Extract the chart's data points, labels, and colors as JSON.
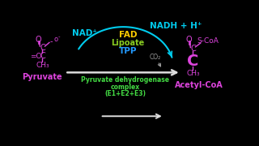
{
  "bg_color": "#000000",
  "pyruvate_label": "Pyruvate",
  "acetylcoa_label": "Acetyl-CoA",
  "complex_line1": "Pyruvate dehydrogenase",
  "complex_line2": "complex",
  "complex_line3": "(E1+E2+E3)",
  "nad_label": "NAD⁺",
  "nadh_label": "NADH + H⁺",
  "fad_label": "FAD",
  "lipoate_label": "Lipoate",
  "tpp_label": "TPP",
  "co2_label": "CO₂",
  "colors": {
    "pyruvate_structure": "#dd44dd",
    "pyruvate_label": "#dd44dd",
    "acetylcoa_structure": "#dd44dd",
    "acetylcoa_label": "#dd44dd",
    "complex_label": "#44dd44",
    "nad": "#00ccee",
    "nadh": "#00ccee",
    "fad": "#ffcc00",
    "lipoate": "#88cc22",
    "tpp": "#2299ff",
    "co2": "#999999",
    "arrow_main": "#dddddd",
    "arrow_curve": "#00ccee"
  }
}
